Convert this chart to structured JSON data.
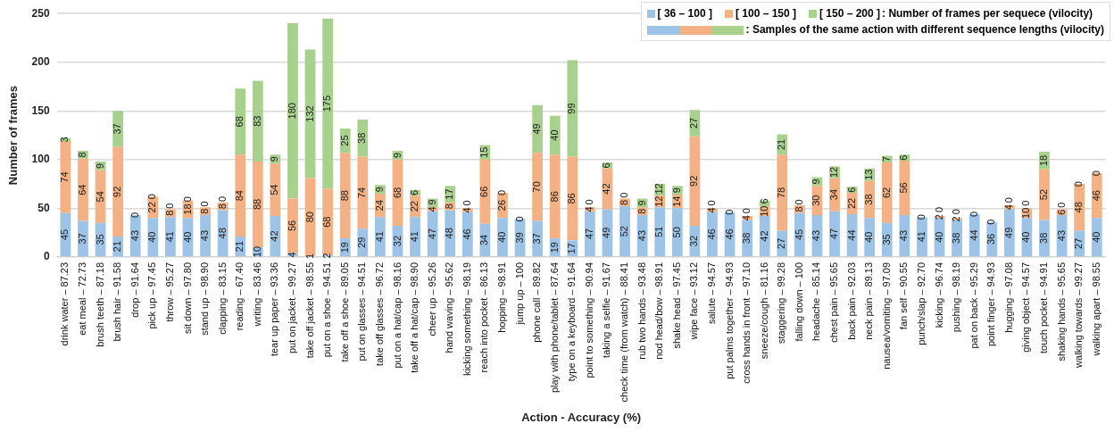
{
  "chart_data": {
    "type": "bar",
    "stacked": true,
    "xlabel": "Action - Accuracy (%)",
    "ylabel": "Number of frames",
    "ylim": [
      0,
      250
    ],
    "yticks": [
      0,
      50,
      100,
      150,
      200,
      250
    ],
    "grid": "y",
    "legend": "top right",
    "annotations": [
      ": Number of frames per sequece (vilocity)",
      ": Samples of the same action with different sequence lengths (vilocity)"
    ],
    "categories": [
      "drink water – 87.23",
      "eat meal – 72.73",
      "brush teeth – 87.18",
      "brush hair – 91.58",
      "drop – 91.64",
      "pick up – 97.45",
      "throw – 95.27",
      "sit down – 97.80",
      "stand up – 98.90",
      "clapping – 83.15",
      "reading – 67.40",
      "writing – 83.46",
      "tear up paper – 93.36",
      "put on jacket – 99.27",
      "take off jacket – 98.55",
      "put on a shoe – 94.51",
      "take off a shoe – 89.05",
      "put on glasses – 94.51",
      "take off glasses – 96.72",
      "put on a hat/cap – 98.16",
      "take off a hat/cap – 98.90",
      "cheer up – 95.26",
      "hand waving – 95.62",
      "kicking something – 98.19",
      "reach into pocket – 86.13",
      "hopping – 98.91",
      "jump up – 100",
      "phone call – 89.82",
      "play with phone/tablet – 87.64",
      "type on a keyboard – 91.64",
      "point to something – 90.94",
      "taking a selfie – 91.67",
      "check time (from watch) – 88.41",
      "rub two hands – 93.48",
      "nod head/bow – 98.91",
      "shake head – 97.45",
      "wipe face – 93.12",
      "salute – 94.57",
      "put palms together – 94.93",
      "cross hands in front – 97.10",
      "sneeze/cough – 81.16",
      "staggering – 99.28",
      "falling down – 100",
      "headache – 85.14",
      "chest pain – 95.65",
      "back pain – 92.03",
      "neck pain – 89.13",
      "nausea/vomiting – 97.09",
      "fan self – 90.55",
      "punch/slap – 92.70",
      "kicking – 96.74",
      "pushing – 98.19",
      "pat on back – 95.29",
      "point finger – 94.93",
      "hugging – 97.08",
      "giving object – 94.57",
      "touch pocket – 94.91",
      "shaking hands – 95.65",
      "walking towards – 99.27",
      "walking apart – 98.55"
    ],
    "series": [
      {
        "name": "[ 36 – 100 ]",
        "color": "#9dc3e6",
        "values": [
          45,
          37,
          35,
          21,
          43,
          40,
          41,
          40,
          43,
          48,
          21,
          10,
          42,
          4,
          1,
          2,
          19,
          29,
          41,
          32,
          41,
          47,
          48,
          46,
          34,
          40,
          39,
          37,
          19,
          17,
          47,
          49,
          52,
          43,
          51,
          50,
          32,
          46,
          46,
          38,
          42,
          27,
          45,
          43,
          47,
          44,
          40,
          35,
          43,
          41,
          40,
          38,
          44,
          36,
          49,
          40,
          38,
          43,
          27,
          40
        ],
        "value_labels": [
          "45",
          "37",
          "35",
          "21",
          "43",
          "40",
          "41",
          "40",
          "43",
          "48",
          "21",
          "10",
          "42",
          "4",
          "1",
          "2",
          "19",
          "29",
          "41",
          "32",
          "41",
          "47",
          "48",
          "46",
          "34",
          "40",
          "39",
          "37",
          "19",
          "17",
          "47",
          "49",
          "52",
          "43",
          "51",
          "50",
          "32",
          "46",
          "46",
          "38",
          "42",
          "27",
          "45",
          "43",
          "47",
          "44",
          "40",
          "35",
          "43",
          "41",
          "40",
          "38",
          "44",
          "36",
          "49",
          "40",
          "38",
          "43",
          "27",
          "40"
        ]
      },
      {
        "name": "[ 100 – 150 ]",
        "color": "#f4b183",
        "values": [
          74,
          64,
          54,
          92,
          0,
          22,
          8,
          18,
          8,
          8,
          84,
          88,
          54,
          56,
          80,
          68,
          88,
          74,
          24,
          68,
          22,
          4,
          8,
          4,
          66,
          26,
          0,
          70,
          86,
          86,
          4,
          42,
          8,
          8,
          12,
          14,
          92,
          4,
          0,
          4,
          10,
          78,
          8,
          30,
          34,
          22,
          38,
          62,
          56,
          0,
          2,
          2,
          0,
          0,
          4,
          10,
          52,
          6,
          48,
          46
        ],
        "value_labels": [
          "74",
          "64",
          "54",
          "92",
          "0",
          "22",
          "8",
          "18",
          "8",
          "8",
          "84",
          "88",
          "54",
          "56",
          "80",
          "68",
          "88",
          "74",
          "24",
          "68",
          "22",
          "4",
          "8",
          "4",
          "66",
          "26",
          "0",
          "70",
          "86",
          "86",
          "4",
          "42",
          "8",
          "8",
          "12",
          "14",
          "92",
          "4",
          "0",
          "4",
          "10",
          "78",
          "8",
          "30",
          "34",
          "22",
          "38",
          "62",
          "56",
          "0",
          "2",
          "2",
          "0",
          "0",
          "4",
          "10",
          "52",
          "6",
          "48",
          "46"
        ]
      },
      {
        "name": "[ 150 – 200 ]",
        "color": "#a9d18e",
        "values": [
          3,
          8,
          9,
          37,
          0,
          0,
          0,
          0,
          0,
          0,
          68,
          83,
          9,
          180,
          132,
          175,
          25,
          38,
          9,
          9,
          6,
          9,
          17,
          0,
          15,
          0,
          0,
          49,
          40,
          99,
          0,
          6,
          0,
          9,
          12,
          9,
          27,
          0,
          0,
          0,
          6,
          21,
          0,
          9,
          12,
          6,
          13,
          7,
          6,
          0,
          0,
          0,
          0,
          0,
          0,
          0,
          18,
          0,
          0,
          0
        ],
        "value_labels": [
          "3",
          "8",
          "9",
          "37",
          null,
          "0",
          "0",
          "0",
          "0",
          "0",
          "68",
          "83",
          "9",
          "180",
          "132",
          "175",
          "25",
          "38",
          "9",
          "9",
          "6",
          "9",
          "17",
          "0",
          "15",
          "0",
          null,
          "49",
          "40",
          "99",
          "0",
          "6",
          "0",
          "9",
          "12",
          "9",
          "27",
          "0",
          null,
          "0",
          "6",
          "21",
          "0",
          "9",
          "12",
          "6",
          "13",
          "7",
          "6",
          null,
          "0",
          "0",
          null,
          null,
          "0",
          "0",
          "18",
          "0",
          "0",
          "0"
        ]
      }
    ]
  }
}
